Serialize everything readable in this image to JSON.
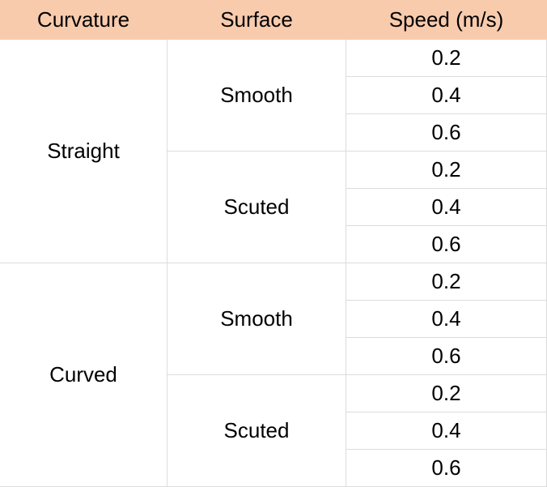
{
  "table": {
    "header": [
      "Curvature",
      "Surface",
      "Speed (m/s)"
    ],
    "groups": [
      {
        "curvature": "Straight",
        "surfaces": [
          {
            "surface": "Smooth",
            "speeds": [
              0.2,
              0.4,
              0.6
            ]
          },
          {
            "surface": "Scuted",
            "speeds": [
              0.2,
              0.4,
              0.6
            ]
          }
        ]
      },
      {
        "curvature": "Curved",
        "surfaces": [
          {
            "surface": "Smooth",
            "speeds": [
              0.2,
              0.4,
              0.6
            ]
          },
          {
            "surface": "Scuted",
            "speeds": [
              0.2,
              0.4,
              0.6
            ]
          }
        ]
      }
    ]
  }
}
